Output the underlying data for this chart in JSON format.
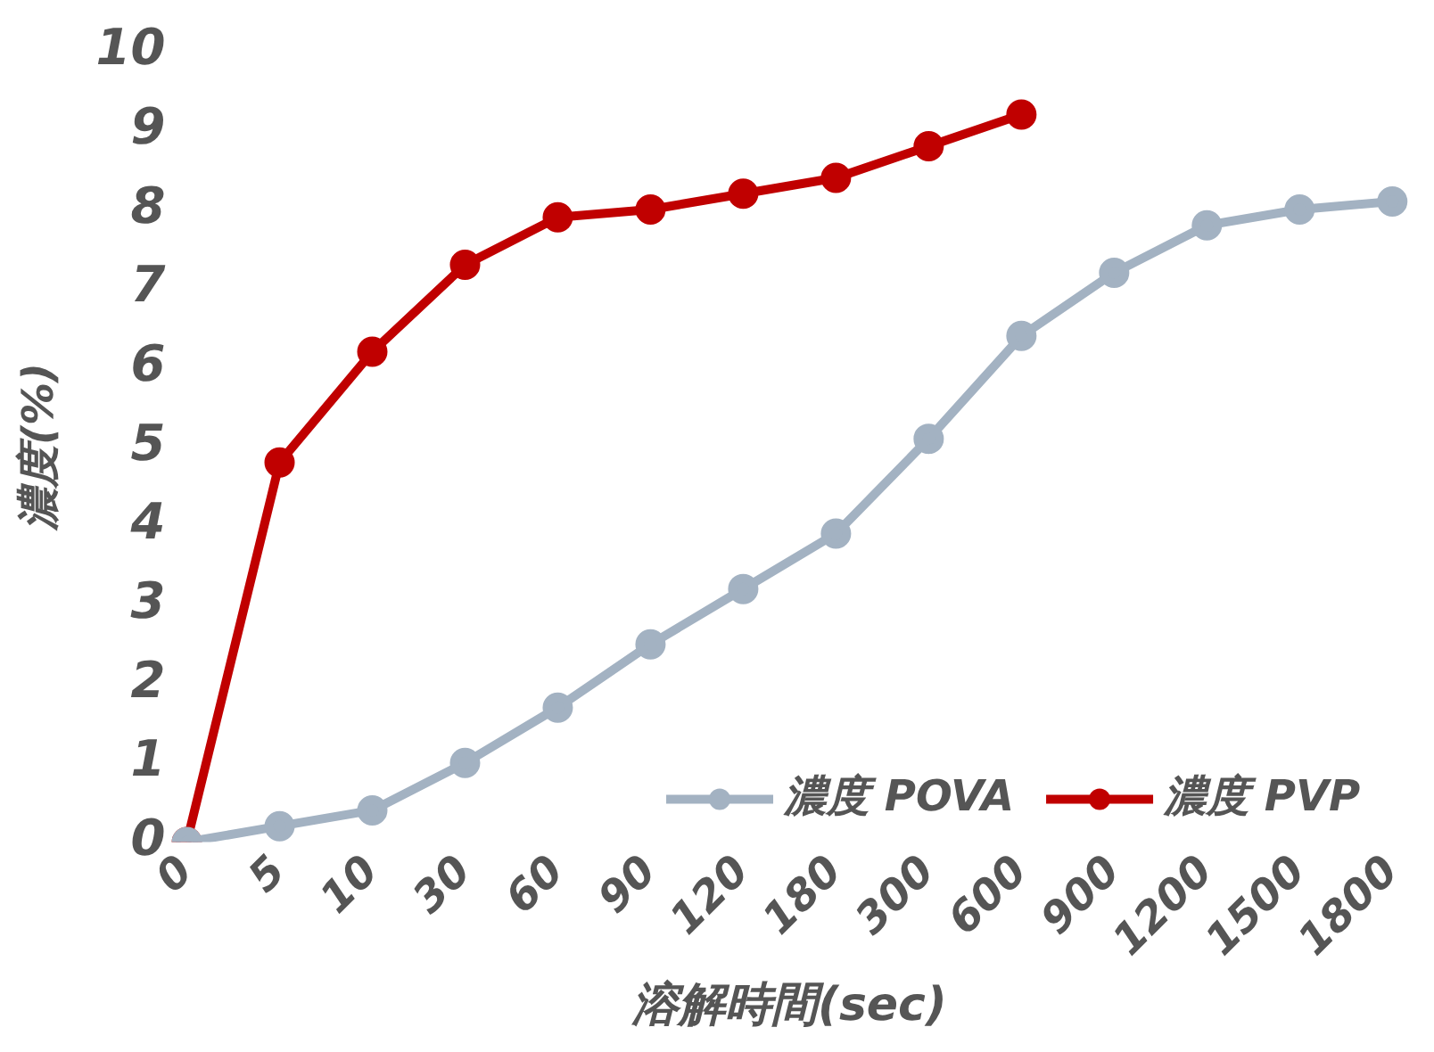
{
  "chart_data": {
    "type": "line",
    "xlabel": "溶解時間(sec)",
    "ylabel": "濃度(%)",
    "categories": [
      "0",
      "5",
      "10",
      "30",
      "60",
      "90",
      "120",
      "180",
      "300",
      "600",
      "900",
      "1200",
      "1500",
      "1800"
    ],
    "series": [
      {
        "name": "濃度 POVA",
        "color": "#a3b2c2",
        "values": [
          0,
          0.2,
          0.4,
          1.0,
          1.7,
          2.5,
          3.2,
          3.9,
          5.1,
          6.4,
          7.2,
          7.8,
          8.0,
          8.1
        ]
      },
      {
        "name": "濃度 PVP",
        "color": "#c00000",
        "values": [
          0,
          4.8,
          6.2,
          7.3,
          7.9,
          8.0,
          8.2,
          8.4,
          8.8,
          9.2,
          null,
          null,
          null,
          null
        ]
      }
    ],
    "ylim": [
      0,
      10
    ],
    "yticks": [
      0,
      1,
      2,
      3,
      4,
      5,
      6,
      7,
      8,
      9,
      10
    ],
    "legend": "bottom right",
    "marker": "circle",
    "line_style": "solid"
  }
}
